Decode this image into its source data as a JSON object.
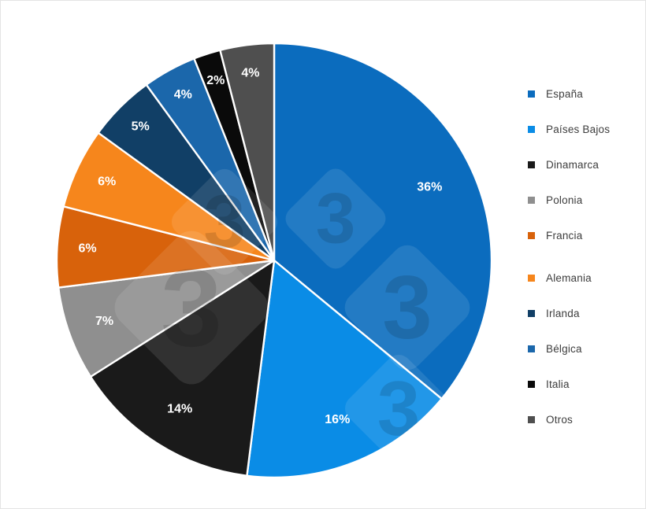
{
  "chart_data": {
    "type": "pie",
    "title": "",
    "categories": [
      "España",
      "Países Bajos",
      "Dinamarca",
      "Polonia",
      "Francia",
      "Alemania",
      "Irlanda",
      "Bélgica",
      "Italia",
      "Otros"
    ],
    "values": [
      36,
      16,
      14,
      7,
      6,
      6,
      5,
      4,
      2,
      4
    ],
    "slice_labels": [
      "36%",
      "16%",
      "14%",
      "7%",
      "6%",
      "6%",
      "5%",
      "4%",
      "2%",
      "4%"
    ],
    "colors": [
      "#0b6cbe",
      "#0a8ce6",
      "#1a1a1a",
      "#8f8f8f",
      "#d8620b",
      "#f6861c",
      "#113f66",
      "#1b67ab",
      "#0a0a0a",
      "#4f4f4f"
    ],
    "label_text_color": "#ffffff",
    "legend_position": "right",
    "legend_text_color": "#3d3d3d",
    "background": "#ffffff",
    "slice_separator_color": "#ffffff",
    "direction": "clockwise",
    "start_at": "12-oclock",
    "watermark_glyph": "3"
  }
}
